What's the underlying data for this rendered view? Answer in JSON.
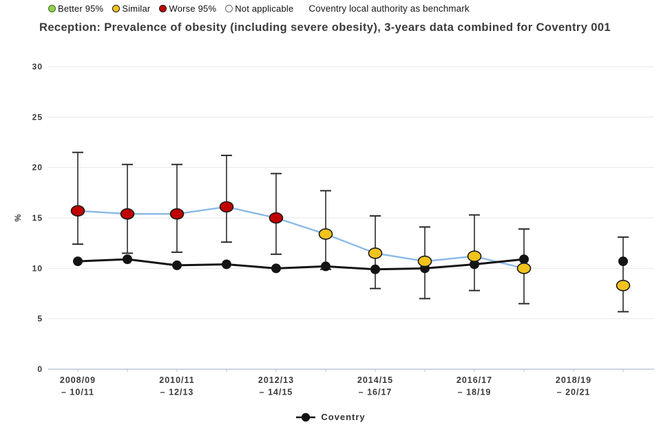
{
  "top_legend": {
    "items": [
      {
        "key": "better",
        "label": "Better 95%"
      },
      {
        "key": "similar",
        "label": "Similar"
      },
      {
        "key": "worse",
        "label": "Worse 95%"
      },
      {
        "key": "not_applicable",
        "label": "Not applicable"
      }
    ],
    "benchmark_note": "Coventry local authority as benchmark"
  },
  "title": "Reception: Prevalence of obesity (including severe obesity), 3-years data combined for Coventry 001",
  "bottom_legend": {
    "label": "Coventry"
  },
  "chart_data": {
    "type": "line",
    "title": "Reception: Prevalence of obesity (including severe obesity), 3-years data combined for Coventry 001",
    "ylabel": "%",
    "ylim": [
      0,
      30
    ],
    "yticks": [
      0,
      5,
      10,
      15,
      20,
      25,
      30
    ],
    "grid": true,
    "legend_position": "bottom",
    "num_slots": 12,
    "x_labels": [
      {
        "slot": 1,
        "lines": [
          "2008/09",
          "– 10/11"
        ]
      },
      {
        "slot": 3,
        "lines": [
          "2010/11",
          "– 12/13"
        ]
      },
      {
        "slot": 5,
        "lines": [
          "2012/13",
          "– 14/15"
        ]
      },
      {
        "slot": 7,
        "lines": [
          "2014/15",
          "– 16/17"
        ]
      },
      {
        "slot": 9,
        "lines": [
          "2016/17",
          "– 18/19"
        ]
      },
      {
        "slot": 11,
        "lines": [
          "2018/19",
          "– 20/21"
        ]
      }
    ],
    "main_series": {
      "name": "Coventry 001",
      "points": [
        {
          "slot": 1,
          "value": 15.7,
          "ci_low": 12.4,
          "ci_high": 21.5,
          "status": "worse"
        },
        {
          "slot": 2,
          "value": 15.4,
          "ci_low": 11.5,
          "ci_high": 20.3,
          "status": "worse"
        },
        {
          "slot": 3,
          "value": 15.4,
          "ci_low": 11.6,
          "ci_high": 20.3,
          "status": "worse"
        },
        {
          "slot": 4,
          "value": 16.1,
          "ci_low": 12.6,
          "ci_high": 21.2,
          "status": "worse"
        },
        {
          "slot": 5,
          "value": 15.0,
          "ci_low": 11.4,
          "ci_high": 19.4,
          "status": "worse"
        },
        {
          "slot": 6,
          "value": 13.4,
          "ci_low": 9.9,
          "ci_high": 17.7,
          "status": "similar"
        },
        {
          "slot": 7,
          "value": 11.5,
          "ci_low": 8.0,
          "ci_high": 15.2,
          "status": "similar"
        },
        {
          "slot": 8,
          "value": 10.7,
          "ci_low": 7.0,
          "ci_high": 14.1,
          "status": "similar"
        },
        {
          "slot": 9,
          "value": 11.2,
          "ci_low": 7.8,
          "ci_high": 15.3,
          "status": "similar"
        },
        {
          "slot": 10,
          "value": 10.0,
          "ci_low": 6.5,
          "ci_high": 13.9,
          "status": "similar"
        },
        {
          "slot": 12,
          "value": 8.3,
          "ci_low": 5.7,
          "ci_high": 13.1,
          "status": "similar",
          "isolated": true
        }
      ]
    },
    "benchmark_series": {
      "name": "Coventry",
      "points": [
        {
          "slot": 1,
          "value": 10.7
        },
        {
          "slot": 2,
          "value": 10.9
        },
        {
          "slot": 3,
          "value": 10.3
        },
        {
          "slot": 4,
          "value": 10.4
        },
        {
          "slot": 5,
          "value": 10.0
        },
        {
          "slot": 6,
          "value": 10.2
        },
        {
          "slot": 7,
          "value": 9.9
        },
        {
          "slot": 8,
          "value": 10.0
        },
        {
          "slot": 9,
          "value": 10.4
        },
        {
          "slot": 10,
          "value": 10.9
        },
        {
          "slot": 12,
          "value": 10.7,
          "isolated": true
        }
      ]
    },
    "status_colors": {
      "better": "#92d04f",
      "similar": "#f2c31d",
      "worse": "#c00000",
      "not_applicable": "#ffffff"
    },
    "status_border_colors": {
      "better": "#3f6d1f",
      "similar": "#1a1a1a",
      "worse": "#1a1a1a",
      "not_applicable": "#666666"
    },
    "trend_line_color": "#8ab9e8",
    "benchmark_color": "#141414",
    "error_bar_color": "#2a2a2a",
    "grid_color": "#e7e7ef",
    "axis_color": "#bfc9da",
    "tick_text_color": "#3a3a3a"
  }
}
